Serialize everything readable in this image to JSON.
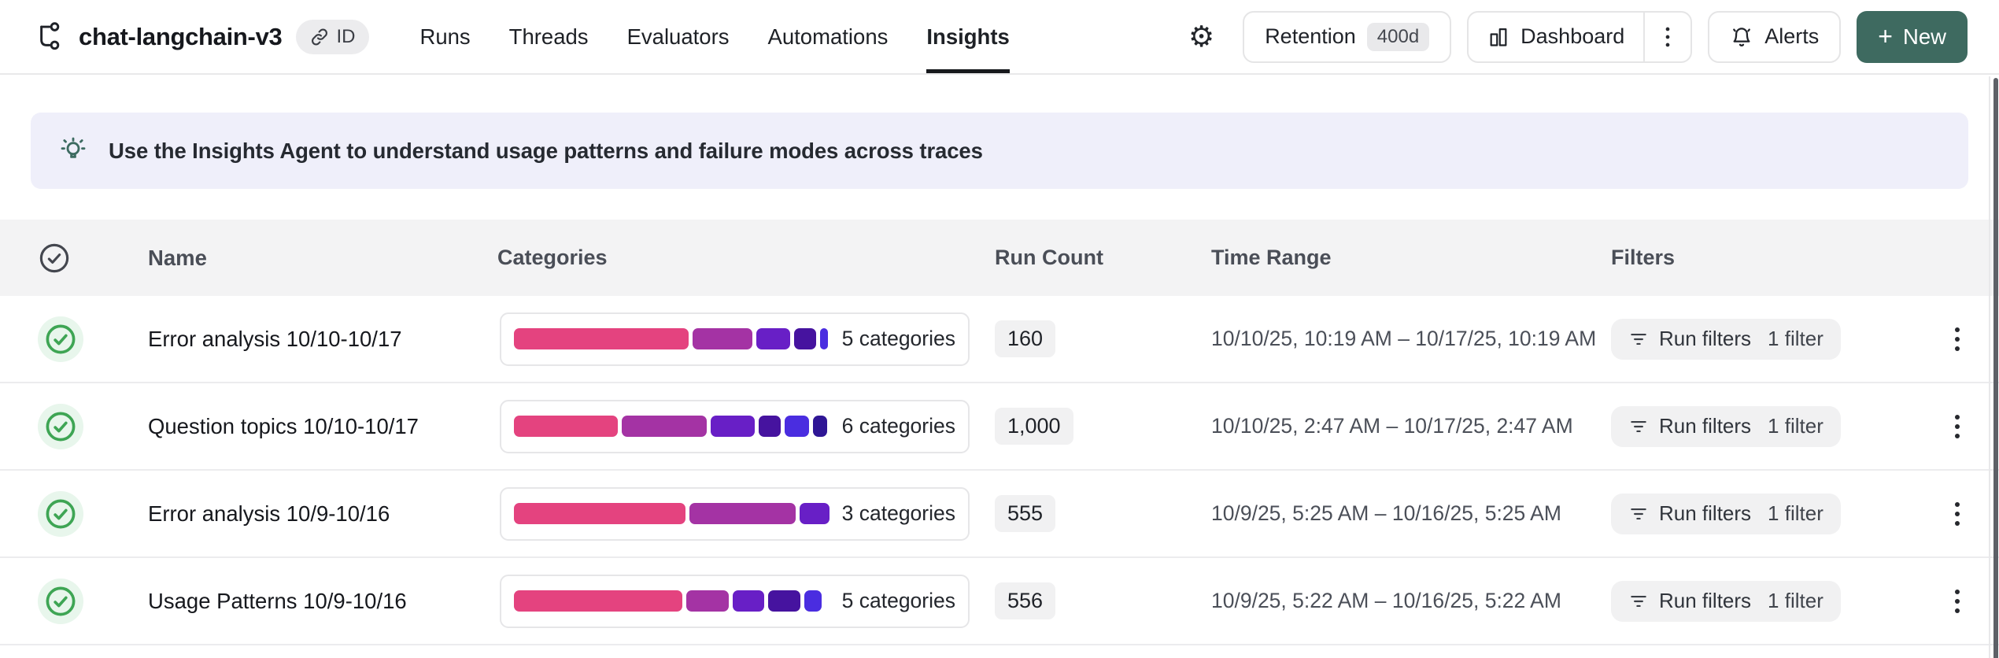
{
  "header": {
    "project_title": "chat-langchain-v3",
    "id_badge": "ID",
    "tabs": [
      {
        "label": "Runs",
        "active": false
      },
      {
        "label": "Threads",
        "active": false
      },
      {
        "label": "Evaluators",
        "active": false
      },
      {
        "label": "Automations",
        "active": false
      },
      {
        "label": "Insights",
        "active": true
      }
    ],
    "gear_icon": "⚙",
    "retention": {
      "label": "Retention",
      "badge": "400d"
    },
    "dashboard_label": "Dashboard",
    "alerts_label": "Alerts",
    "new_button": {
      "plus": "+",
      "label": "New"
    }
  },
  "banner": {
    "text": "Use the Insights Agent to understand usage patterns and failure modes across traces"
  },
  "table": {
    "columns": [
      "Name",
      "Categories",
      "Run Count",
      "Time Range",
      "Filters"
    ],
    "rows": [
      {
        "name": "Error analysis 10/10-10/17",
        "categories_label": "5 categories",
        "segments": [
          {
            "color": "#e4437f",
            "pct": 55.5
          },
          {
            "color": "#a433a4",
            "pct": 19
          },
          {
            "color": "#681fc6",
            "pct": 10.5
          },
          {
            "color": "#46139f",
            "pct": 7
          },
          {
            "color": "#4a2de0",
            "pct": 2.7
          }
        ],
        "run_count": "160",
        "time_range": "10/10/25, 10:19 AM – 10/17/25, 10:19 AM",
        "filters_label": "Run filters",
        "filters_count": "1 filter"
      },
      {
        "name": "Question topics 10/10-10/17",
        "categories_label": "6 categories",
        "segments": [
          {
            "color": "#e4437f",
            "pct": 33
          },
          {
            "color": "#a433a4",
            "pct": 27
          },
          {
            "color": "#681fc6",
            "pct": 14
          },
          {
            "color": "#46139f",
            "pct": 7
          },
          {
            "color": "#4a2de0",
            "pct": 7.5
          },
          {
            "color": "#2f1695",
            "pct": 4.5
          }
        ],
        "run_count": "1,000",
        "time_range": "10/10/25, 2:47 AM – 10/17/25, 2:47 AM",
        "filters_label": "Run filters",
        "filters_count": "1 filter"
      },
      {
        "name": "Error analysis 10/9-10/16",
        "categories_label": "3 categories",
        "segments": [
          {
            "color": "#e4437f",
            "pct": 54.5
          },
          {
            "color": "#a433a4",
            "pct": 33.5
          },
          {
            "color": "#681fc6",
            "pct": 9.5
          }
        ],
        "run_count": "555",
        "time_range": "10/9/25, 5:25 AM – 10/16/25, 5:25 AM",
        "filters_label": "Run filters",
        "filters_count": "1 filter"
      },
      {
        "name": "Usage Patterns 10/9-10/16",
        "categories_label": "5 categories",
        "segments": [
          {
            "color": "#e4437f",
            "pct": 53.5
          },
          {
            "color": "#a433a4",
            "pct": 13.5
          },
          {
            "color": "#681fc6",
            "pct": 10
          },
          {
            "color": "#46139f",
            "pct": 10.2
          },
          {
            "color": "#4a2de0",
            "pct": 5.3
          }
        ],
        "run_count": "556",
        "time_range": "10/9/25, 5:22 AM – 10/16/25, 5:22 AM",
        "filters_label": "Run filters",
        "filters_count": "1 filter"
      }
    ]
  },
  "colors": {
    "accent_new_button": "#3e6a60",
    "banner_background": "#efeffa",
    "banner_icon": "#3d6b61",
    "row_check_green": "#3ea554",
    "table_header_background": "#f3f3f4"
  },
  "icons": {
    "project": "tree-icon",
    "id_badge": "link-icon",
    "settings": "gear-icon",
    "dashboard": "bar-chart-icon",
    "alerts": "bell-icon",
    "banner": "lightbulb-icon",
    "select_column": "check-circle-icon",
    "filters": "filter-lines-icon",
    "row_menu": "kebab-menu-icon"
  }
}
